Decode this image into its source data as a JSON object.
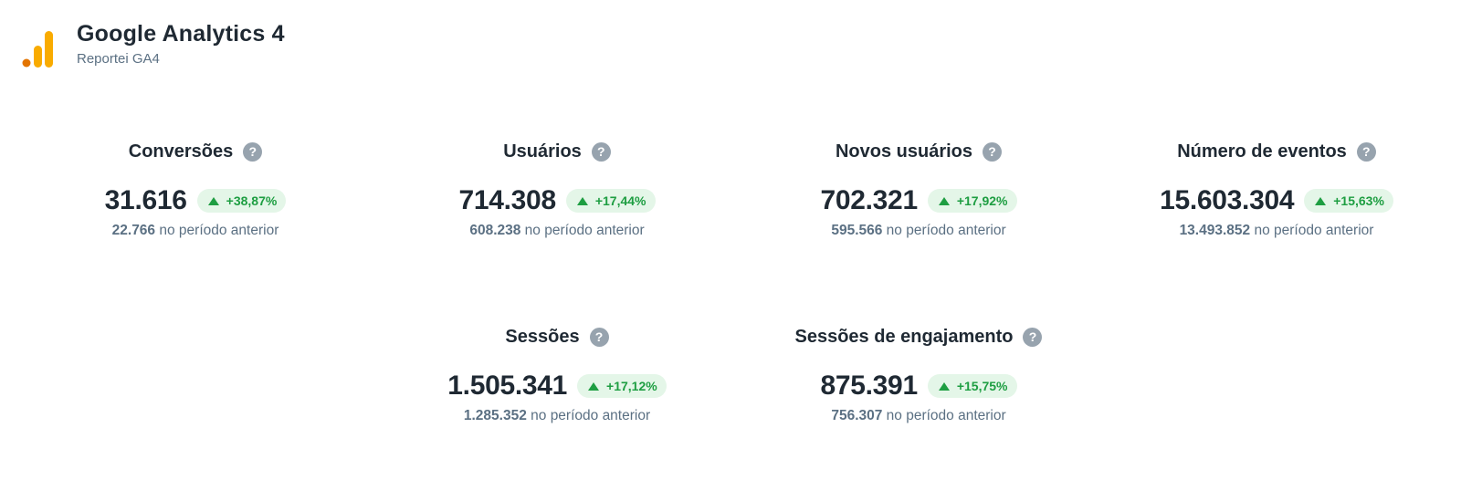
{
  "header": {
    "title": "Google Analytics 4",
    "subtitle": "Reportei GA4",
    "logo_icon": "google-analytics-logo",
    "logo_colors": [
      "#F9AB00",
      "#E37400"
    ]
  },
  "colors": {
    "positive": "#1e9e42",
    "positive_bg": "#e4f6e8",
    "help_icon": "#97a3ae",
    "muted_text": "#5b7083"
  },
  "help_glyph": "?",
  "metrics": [
    {
      "title": "Conversões",
      "value": "31.616",
      "delta": "+38,87%",
      "previous_value": "22.766",
      "previous_label": "no período anterior"
    },
    {
      "title": "Usuários",
      "value": "714.308",
      "delta": "+17,44%",
      "previous_value": "608.238",
      "previous_label": "no período anterior"
    },
    {
      "title": "Novos usuários",
      "value": "702.321",
      "delta": "+17,92%",
      "previous_value": "595.566",
      "previous_label": "no período anterior"
    },
    {
      "title": "Número de eventos",
      "value": "15.603.304",
      "delta": "+15,63%",
      "previous_value": "13.493.852",
      "previous_label": "no período anterior"
    },
    {
      "title": "Sessões",
      "value": "1.505.341",
      "delta": "+17,12%",
      "previous_value": "1.285.352",
      "previous_label": "no período anterior"
    },
    {
      "title": "Sessões de engajamento",
      "value": "875.391",
      "delta": "+15,75%",
      "previous_value": "756.307",
      "previous_label": "no período anterior"
    }
  ]
}
